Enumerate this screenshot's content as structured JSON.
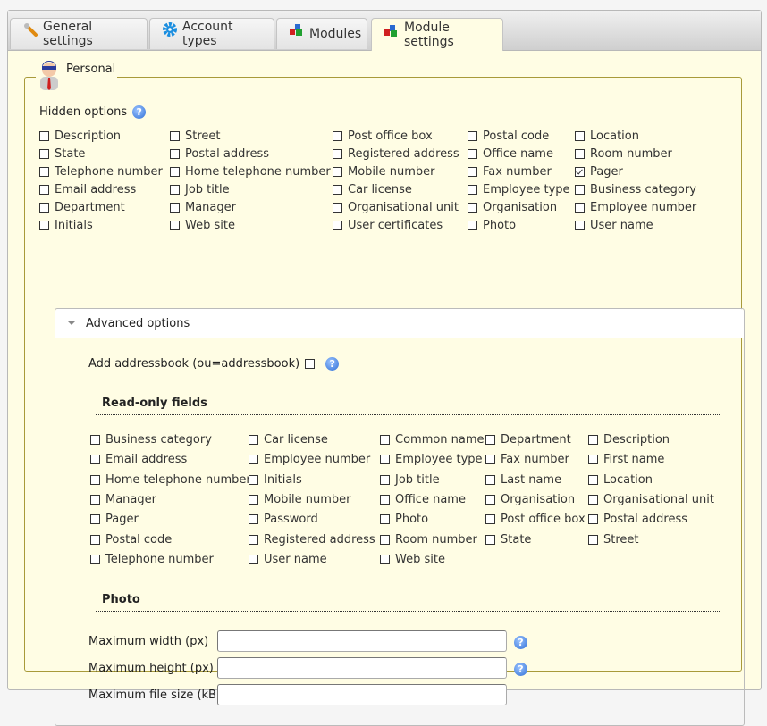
{
  "tabs": [
    {
      "label": "General settings",
      "icon": "wrench-icon"
    },
    {
      "label": "Account types",
      "icon": "gear-icon"
    },
    {
      "label": "Modules",
      "icon": "modules-icon"
    },
    {
      "label": "Module settings",
      "icon": "modules-icon",
      "active": true
    }
  ],
  "personal": {
    "legend": "Personal",
    "hidden_options_label": "Hidden options",
    "hidden_options": [
      [
        {
          "label": "Description"
        },
        {
          "label": "Street"
        },
        {
          "label": "Post office box"
        },
        {
          "label": "Postal code"
        },
        {
          "label": "Location"
        }
      ],
      [
        {
          "label": "State"
        },
        {
          "label": "Postal address"
        },
        {
          "label": "Registered address"
        },
        {
          "label": "Office name"
        },
        {
          "label": "Room number"
        }
      ],
      [
        {
          "label": "Telephone number"
        },
        {
          "label": "Home telephone number"
        },
        {
          "label": "Mobile number"
        },
        {
          "label": "Fax number"
        },
        {
          "label": "Pager",
          "checked": true
        }
      ],
      [
        {
          "label": "Email address"
        },
        {
          "label": "Job title"
        },
        {
          "label": "Car license"
        },
        {
          "label": "Employee type"
        },
        {
          "label": "Business category"
        }
      ],
      [
        {
          "label": "Department"
        },
        {
          "label": "Manager"
        },
        {
          "label": "Organisational unit"
        },
        {
          "label": "Organisation"
        },
        {
          "label": "Employee number"
        }
      ],
      [
        {
          "label": "Initials"
        },
        {
          "label": "Web site"
        },
        {
          "label": "User certificates"
        },
        {
          "label": "Photo"
        },
        {
          "label": "User name"
        }
      ]
    ],
    "advanced": {
      "title": "Advanced options",
      "addressbook_label": "Add addressbook (ou=addressbook)",
      "addressbook_checked": false,
      "readonly_title": "Read-only fields",
      "readonly_fields": [
        [
          {
            "label": "Business category"
          },
          {
            "label": "Car license"
          },
          {
            "label": "Common name"
          },
          {
            "label": "Department"
          },
          {
            "label": "Description"
          }
        ],
        [
          {
            "label": "Email address"
          },
          {
            "label": "Employee number"
          },
          {
            "label": "Employee type"
          },
          {
            "label": "Fax number"
          },
          {
            "label": "First name"
          }
        ],
        [
          {
            "label": "Home telephone number"
          },
          {
            "label": "Initials"
          },
          {
            "label": "Job title"
          },
          {
            "label": "Last name"
          },
          {
            "label": "Location"
          }
        ],
        [
          {
            "label": "Manager"
          },
          {
            "label": "Mobile number"
          },
          {
            "label": "Office name"
          },
          {
            "label": "Organisation"
          },
          {
            "label": "Organisational unit"
          }
        ],
        [
          {
            "label": "Pager"
          },
          {
            "label": "Password"
          },
          {
            "label": "Photo"
          },
          {
            "label": "Post office box"
          },
          {
            "label": "Postal address"
          }
        ],
        [
          {
            "label": "Postal code"
          },
          {
            "label": "Registered address"
          },
          {
            "label": "Room number"
          },
          {
            "label": "State"
          },
          {
            "label": "Street"
          }
        ],
        [
          {
            "label": "Telephone number"
          },
          {
            "label": "User name"
          },
          {
            "label": "Web site"
          }
        ]
      ],
      "photo_title": "Photo",
      "max_width_label": "Maximum width (px)",
      "max_width_value": "",
      "max_height_label": "Maximum height (px)",
      "max_height_value": "",
      "max_size_label": "Maximum file size (kB)",
      "max_size_value": ""
    }
  },
  "colors": {
    "panel_bg": "#fffde4",
    "border_accent": "#a89a3a",
    "help": "#2f6fd6"
  }
}
